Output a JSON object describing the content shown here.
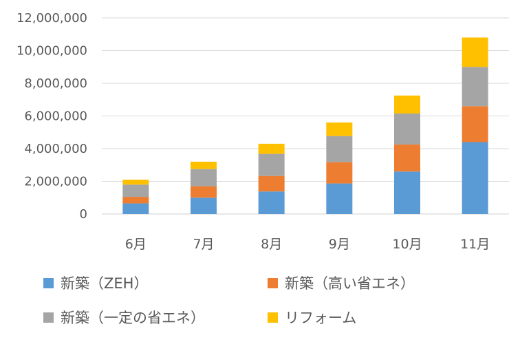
{
  "chart_data": {
    "type": "bar",
    "stacked": true,
    "categories": [
      "6月",
      "7月",
      "8月",
      "9月",
      "10月",
      "11月"
    ],
    "series": [
      {
        "name": "新築（ZEH）",
        "color": "#5B9BD5",
        "values": [
          650000,
          1000000,
          1380000,
          1870000,
          2600000,
          4400000
        ]
      },
      {
        "name": "新築（高い省エネ）",
        "color": "#ED7D31",
        "values": [
          400000,
          700000,
          950000,
          1300000,
          1650000,
          2200000
        ]
      },
      {
        "name": "新築（一定の省エネ）",
        "color": "#A5A5A5",
        "values": [
          750000,
          1050000,
          1350000,
          1600000,
          1900000,
          2400000
        ]
      },
      {
        "name": "リフォーム",
        "color": "#FFC000",
        "values": [
          300000,
          450000,
          620000,
          830000,
          1100000,
          1800000
        ]
      }
    ],
    "ylim": [
      0,
      12000000
    ],
    "yticks": [
      0,
      2000000,
      4000000,
      6000000,
      8000000,
      10000000,
      12000000
    ],
    "ytick_labels": [
      "0",
      "2,000,000",
      "4,000,000",
      "6,000,000",
      "8,000,000",
      "10,000,000",
      "12,000,000"
    ],
    "grid": true,
    "legend_position": "bottom",
    "title": "",
    "xlabel": "",
    "ylabel": ""
  }
}
